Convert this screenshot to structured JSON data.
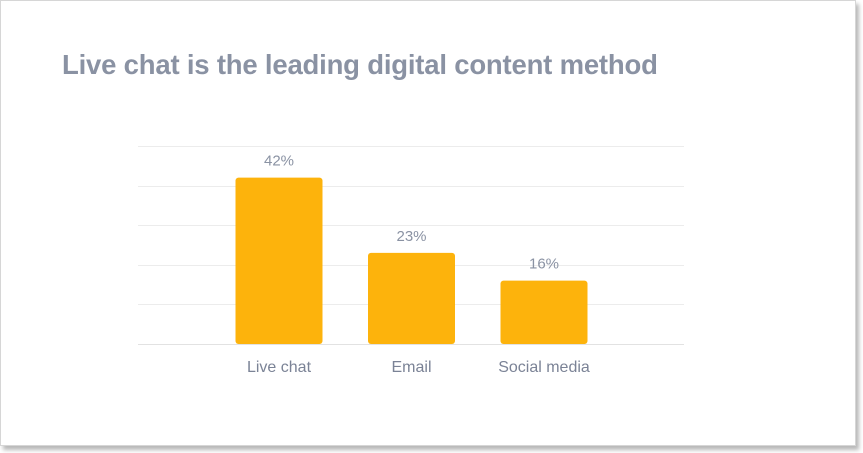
{
  "colors": {
    "bar": "#FDB30C",
    "title": "#8A92A3",
    "label": "#7B8396"
  },
  "chart_data": {
    "type": "bar",
    "title": "Live chat is the leading digital content method",
    "categories": [
      "Live chat",
      "Email",
      "Social media"
    ],
    "values": [
      42,
      23,
      16
    ],
    "value_labels": [
      "42%",
      "23%",
      "16%"
    ],
    "unit": "%",
    "ylim": [
      0,
      50
    ],
    "grid": true,
    "legend": "none"
  }
}
